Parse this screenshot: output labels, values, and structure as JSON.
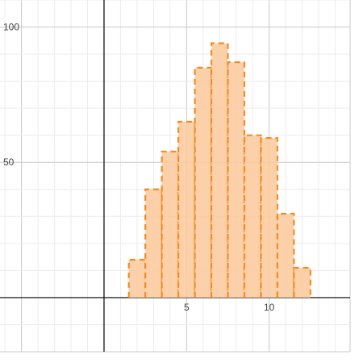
{
  "chart_data": {
    "type": "bar",
    "title": "",
    "xlabel": "",
    "ylabel": "",
    "x": [
      2,
      3,
      4,
      5,
      6,
      7,
      8,
      9,
      10,
      11,
      12
    ],
    "values": [
      14,
      40,
      54,
      65,
      85,
      94,
      87,
      60,
      59,
      31,
      11
    ],
    "bar_width": 1,
    "xlim": [
      -6.3,
      14.9
    ],
    "ylim": [
      -20,
      110
    ],
    "x_ticks": [
      5,
      10
    ],
    "x_tick_labels": [
      "5",
      "10"
    ],
    "y_ticks": [
      50,
      100
    ],
    "y_tick_labels": [
      "50",
      "100"
    ],
    "grid": true,
    "colors": {
      "bar_fill": "#fbc99b",
      "bar_edge": "#f28c28",
      "grid_minor": "#ececec",
      "grid_major": "#c8c8c8",
      "axis": "#000000"
    }
  }
}
